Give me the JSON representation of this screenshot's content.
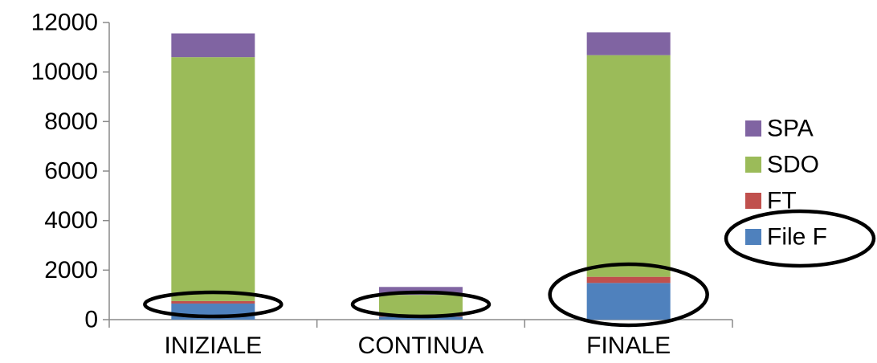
{
  "chart_data": {
    "type": "bar",
    "stacked": true,
    "categories": [
      "INIZIALE",
      "CONTINUA",
      "FINALE"
    ],
    "series": [
      {
        "name": "File F",
        "color": "#4f81bd",
        "values": [
          650,
          120,
          1480
        ]
      },
      {
        "name": "FT",
        "color": "#c0504d",
        "values": [
          100,
          30,
          250
        ]
      },
      {
        "name": "SDO",
        "color": "#9bbb59",
        "values": [
          9850,
          850,
          8950
        ]
      },
      {
        "name": "SPA",
        "color": "#8064a2",
        "values": [
          960,
          320,
          920
        ]
      }
    ],
    "ylim": [
      0,
      12000
    ],
    "yticks": [
      "0",
      "2000",
      "4000",
      "6000",
      "8000",
      "10000",
      "12000"
    ],
    "grid": false,
    "legend_position": "right",
    "highlight_ellipses": [
      "INIZIALE",
      "CONTINUA",
      "FINALE",
      "File F"
    ]
  }
}
